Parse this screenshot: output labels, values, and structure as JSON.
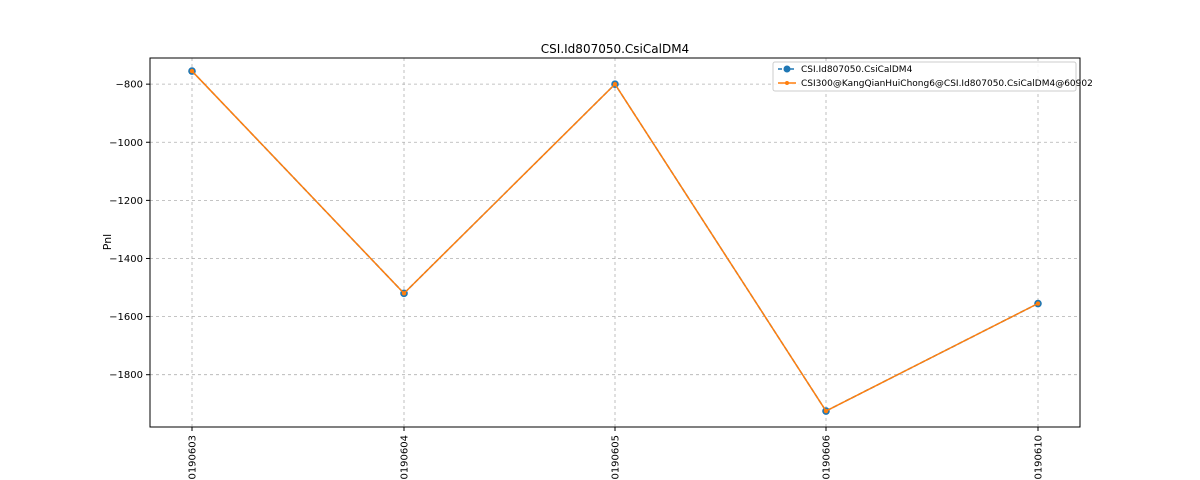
{
  "chart_data": {
    "type": "line",
    "title": "CSI.Id807050.CsiCalDM4",
    "xlabel": "",
    "ylabel": "Pnl",
    "categories": [
      "20190603",
      "20190604",
      "20190605",
      "20190606",
      "20190610"
    ],
    "ylim": [
      -1980,
      -710
    ],
    "yticks": [
      -800,
      -1000,
      -1200,
      -1400,
      -1600,
      -1800
    ],
    "ytick_labels": [
      "−800",
      "−1000",
      "−1200",
      "−1400",
      "−1600",
      "−1800"
    ],
    "grid": true,
    "legend_position": "top-right",
    "series": [
      {
        "name": "CSI.Id807050.CsiCalDM4",
        "values": [
          -755,
          -1520,
          -800,
          -1925,
          -1555
        ],
        "color": "#1f77b4",
        "line_style": "dashed",
        "marker": "circle-large"
      },
      {
        "name": "CSI300@KangQianHuiChong6@CSI.Id807050.CsiCalDM4@60902",
        "values": [
          -755,
          -1520,
          -800,
          -1925,
          -1555
        ],
        "color": "#ff7f0e",
        "line_style": "solid",
        "marker": "circle-small"
      }
    ]
  }
}
